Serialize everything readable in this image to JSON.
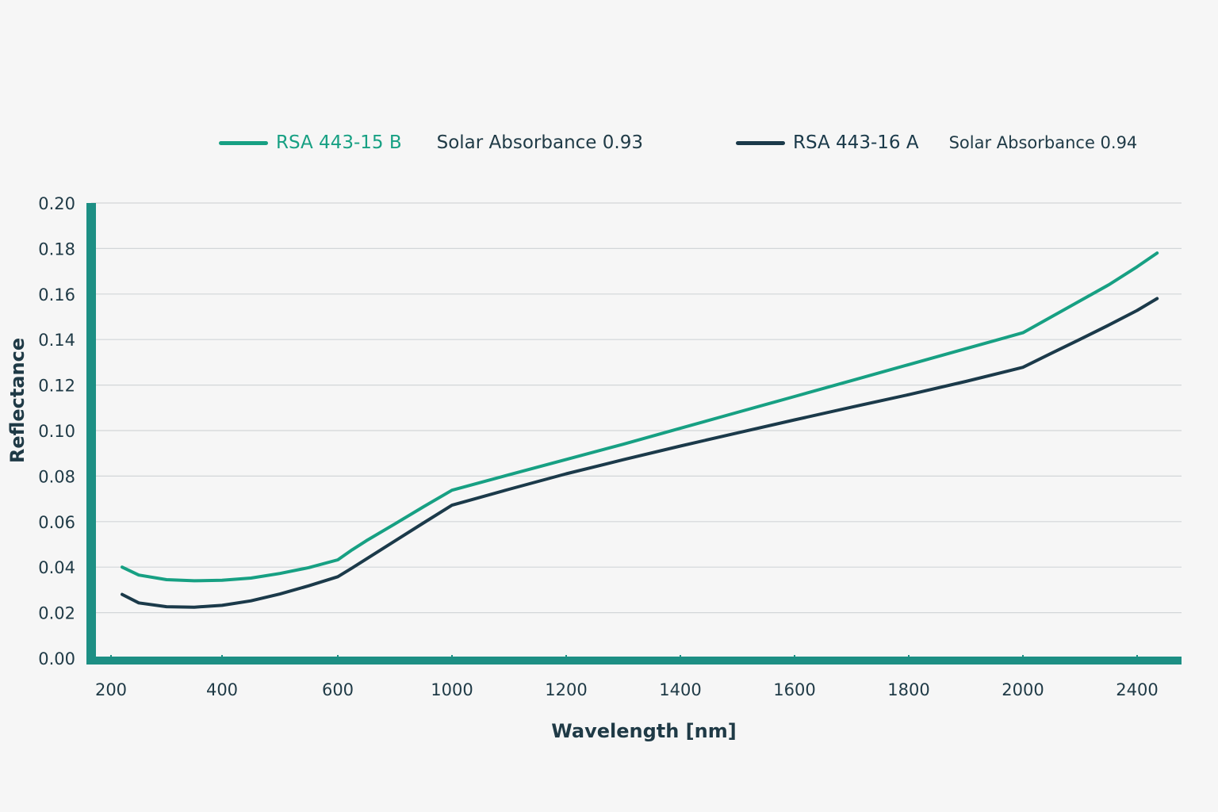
{
  "legend": [
    {
      "name": "RSA 443-15 B",
      "absorbance_label": "Solar Absorbance 0.93",
      "color": "#17a083"
    },
    {
      "name": "RSA 443-16 A",
      "absorbance_label": "Solar Absorbance 0.94",
      "color": "#1b3a4a"
    }
  ],
  "chart_data": {
    "type": "line",
    "title": "",
    "xlabel": "Wavelength [nm]",
    "ylabel": "Reflectance",
    "xlim": [
      180,
      2480
    ],
    "ylim": [
      0,
      0.2
    ],
    "x_ticks": [
      200,
      400,
      600,
      1000,
      1200,
      1400,
      1600,
      1800,
      2000,
      2400
    ],
    "y_ticks": [
      "0.00",
      "0.02",
      "0.04",
      "0.06",
      "0.08",
      "0.10",
      "0.12",
      "0.14",
      "0.16",
      "0.18",
      "0.20"
    ],
    "grid": true,
    "axis_color": "#1d8f84",
    "series": [
      {
        "name": "RSA 443-15 B",
        "color": "#17a083",
        "x": [
          220,
          250,
          300,
          350,
          400,
          450,
          500,
          550,
          600,
          650,
          700,
          800,
          900,
          1000,
          1100,
          1200,
          1300,
          1400,
          1500,
          1600,
          1700,
          1800,
          1900,
          2000,
          2100,
          2200,
          2300,
          2400,
          2470
        ],
        "y": [
          0.04,
          0.0365,
          0.0345,
          0.034,
          0.0342,
          0.0352,
          0.0372,
          0.0398,
          0.0432,
          0.0476,
          0.0516,
          0.059,
          0.0665,
          0.0738,
          0.0806,
          0.0873,
          0.094,
          0.101,
          0.108,
          0.115,
          0.122,
          0.129,
          0.136,
          0.143,
          0.15,
          0.157,
          0.164,
          0.172,
          0.178
        ]
      },
      {
        "name": "RSA 443-16 A",
        "color": "#1b3a4a",
        "x": [
          220,
          250,
          300,
          350,
          400,
          450,
          500,
          550,
          600,
          650,
          700,
          800,
          900,
          1000,
          1100,
          1200,
          1300,
          1400,
          1500,
          1600,
          1700,
          1800,
          1900,
          2000,
          2100,
          2200,
          2300,
          2400,
          2470
        ],
        "y": [
          0.028,
          0.0243,
          0.0226,
          0.0224,
          0.0232,
          0.0252,
          0.0282,
          0.0318,
          0.0358,
          0.0396,
          0.0436,
          0.0515,
          0.0594,
          0.0672,
          0.0742,
          0.081,
          0.0872,
          0.0932,
          0.099,
          0.1047,
          0.1103,
          0.1158,
          0.1216,
          0.1278,
          0.134,
          0.1401,
          0.1463,
          0.1528,
          0.158
        ]
      }
    ]
  }
}
